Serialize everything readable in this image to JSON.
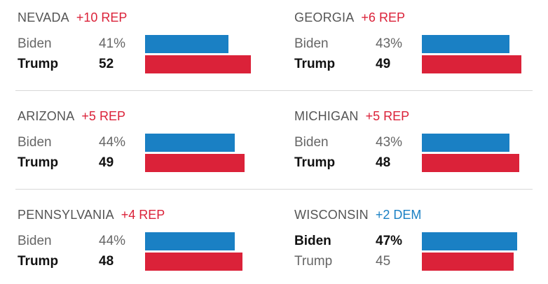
{
  "chart_data": {
    "type": "bar",
    "colors": {
      "Biden": "#1a80c4",
      "Trump": "#db2239",
      "rep_margin": "#db2239",
      "dem_margin": "#1a80c4"
    },
    "states": [
      {
        "name": "NEVADA",
        "margin": "+10 REP",
        "lean": "rep",
        "rows": [
          {
            "candidate": "Biden",
            "label": "41%",
            "value": 41
          },
          {
            "candidate": "Trump",
            "label": "52",
            "value": 52
          }
        ],
        "winner": "Trump"
      },
      {
        "name": "GEORGIA",
        "margin": "+6 REP",
        "lean": "rep",
        "rows": [
          {
            "candidate": "Biden",
            "label": "43%",
            "value": 43
          },
          {
            "candidate": "Trump",
            "label": "49",
            "value": 49
          }
        ],
        "winner": "Trump"
      },
      {
        "name": "ARIZONA",
        "margin": "+5 REP",
        "lean": "rep",
        "rows": [
          {
            "candidate": "Biden",
            "label": "44%",
            "value": 44
          },
          {
            "candidate": "Trump",
            "label": "49",
            "value": 49
          }
        ],
        "winner": "Trump"
      },
      {
        "name": "MICHIGAN",
        "margin": "+5 REP",
        "lean": "rep",
        "rows": [
          {
            "candidate": "Biden",
            "label": "43%",
            "value": 43
          },
          {
            "candidate": "Trump",
            "label": "48",
            "value": 48
          }
        ],
        "winner": "Trump"
      },
      {
        "name": "PENNSYLVANIA",
        "margin": "+4 REP",
        "lean": "rep",
        "rows": [
          {
            "candidate": "Biden",
            "label": "44%",
            "value": 44
          },
          {
            "candidate": "Trump",
            "label": "48",
            "value": 48
          }
        ],
        "winner": "Trump"
      },
      {
        "name": "WISCONSIN",
        "margin": "+2 DEM",
        "lean": "dem",
        "rows": [
          {
            "candidate": "Biden",
            "label": "47%",
            "value": 47
          },
          {
            "candidate": "Trump",
            "label": "45",
            "value": 45
          }
        ],
        "winner": "Biden"
      }
    ]
  }
}
